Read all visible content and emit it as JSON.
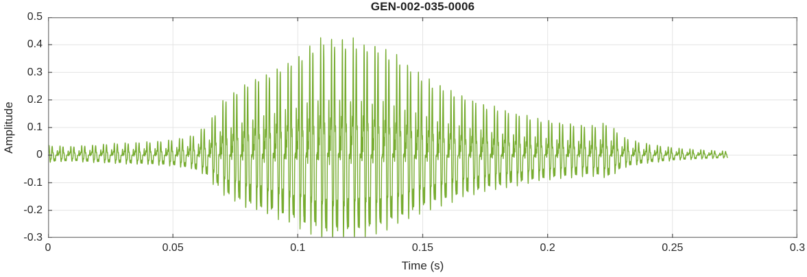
{
  "chart_data": {
    "type": "line",
    "title": "GEN-002-035-0006",
    "xlabel": "Time (s)",
    "ylabel": "Amplitude",
    "xlim": [
      0,
      0.3
    ],
    "ylim": [
      -0.3,
      0.5
    ],
    "xticks": [
      "0",
      "0.05",
      "0.1",
      "0.15",
      "0.2",
      "0.25",
      "0.3"
    ],
    "xtick_values": [
      0,
      0.05,
      0.1,
      0.15,
      0.2,
      0.25,
      0.3
    ],
    "yticks": [
      "-0.3",
      "-0.2",
      "-0.1",
      "0",
      "0.1",
      "0.2",
      "0.3",
      "0.4",
      "0.5"
    ],
    "ytick_values": [
      -0.3,
      -0.2,
      -0.1,
      0,
      0.1,
      0.2,
      0.3,
      0.4,
      0.5
    ],
    "grid": true,
    "legend": "none",
    "box": true,
    "series": [
      {
        "name": "GEN-002-035-0006 waveform",
        "signal": {
          "kind": "amplitude-modulated oscillatory waveform (speech/vibration-like burst)",
          "fundamental_hz": 230,
          "duration_s": 0.272,
          "peak_amplitude": 0.41,
          "min_amplitude": -0.29,
          "peak_time_s": 0.11,
          "negative_to_positive_ratio": 0.72,
          "envelope_keypoints": [
            [
              0.0,
              0.035
            ],
            [
              0.01,
              0.03
            ],
            [
              0.02,
              0.035
            ],
            [
              0.03,
              0.04
            ],
            [
              0.04,
              0.045
            ],
            [
              0.05,
              0.055
            ],
            [
              0.058,
              0.075
            ],
            [
              0.064,
              0.12
            ],
            [
              0.07,
              0.22
            ],
            [
              0.075,
              0.265
            ],
            [
              0.08,
              0.3
            ],
            [
              0.09,
              0.335
            ],
            [
              0.1,
              0.37
            ],
            [
              0.11,
              0.41
            ],
            [
              0.116,
              0.4
            ],
            [
              0.125,
              0.375
            ],
            [
              0.135,
              0.355
            ],
            [
              0.14,
              0.33
            ],
            [
              0.15,
              0.28
            ],
            [
              0.16,
              0.25
            ],
            [
              0.17,
              0.22
            ],
            [
              0.18,
              0.19
            ],
            [
              0.19,
              0.16
            ],
            [
              0.2,
              0.13
            ],
            [
              0.21,
              0.11
            ],
            [
              0.218,
              0.1
            ],
            [
              0.224,
              0.11
            ],
            [
              0.23,
              0.06
            ],
            [
              0.236,
              0.045
            ],
            [
              0.242,
              0.035
            ],
            [
              0.252,
              0.025
            ],
            [
              0.262,
              0.02
            ],
            [
              0.272,
              0.015
            ]
          ]
        }
      }
    ],
    "colors": {
      "line": "#77ac30",
      "axis_box": "#8a8a8a",
      "tick": "#5a5a5a",
      "grid": "#e4e4e4",
      "text": "#262626",
      "title": "#1f1f1f",
      "background": "#ffffff"
    }
  }
}
